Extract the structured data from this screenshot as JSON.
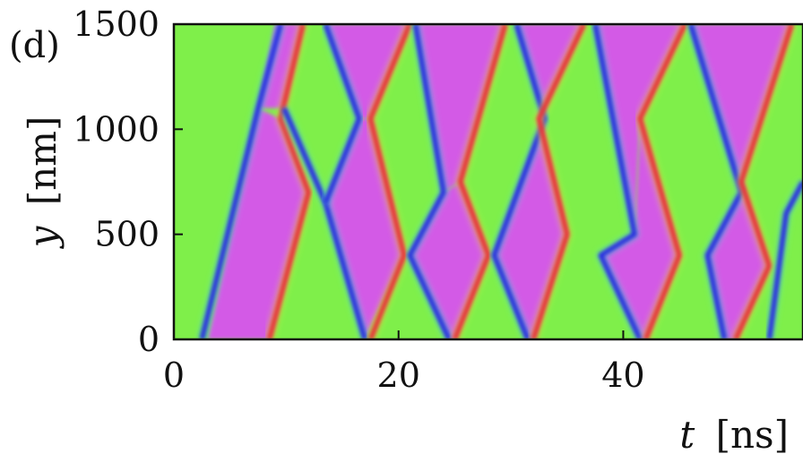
{
  "chart_data": {
    "type": "heatmap",
    "panel_label": "(d)",
    "xlabel_var": "t",
    "xlabel_unit": "[ns]",
    "ylabel_var": "y",
    "ylabel_unit": "[nm]",
    "xlim": [
      0,
      56
    ],
    "ylim": [
      0,
      1500
    ],
    "x_ticks": [
      0,
      20,
      40
    ],
    "x_tick_labels": [
      "0",
      "20",
      "40"
    ],
    "y_ticks": [
      0,
      500,
      1000,
      1500
    ],
    "y_tick_labels": [
      "0",
      "500",
      "1000",
      "1500"
    ],
    "colormap": "hsv",
    "colors": {
      "green": "#7fef4a",
      "magenta": "#d35ae6",
      "blue": "#2a2fe0",
      "red": "#e8323a",
      "yellow": "#e6f04a",
      "cyan": "#58e6d6"
    },
    "domain_walls": [
      {
        "name": "blue-wall",
        "polyline": [
          [
            2.5,
            0
          ],
          [
            7.5,
            1100
          ],
          [
            9.5,
            1500
          ]
        ]
      },
      {
        "name": "red-wall",
        "polyline": [
          [
            8.5,
            0
          ],
          [
            12,
            700
          ],
          [
            9.5,
            1050
          ],
          [
            11.5,
            1500
          ]
        ]
      },
      {
        "name": "blue-wall",
        "polyline": [
          [
            9.8,
            1100
          ],
          [
            13.5,
            650
          ],
          [
            17.0,
            0
          ]
        ]
      },
      {
        "name": "blue-wall",
        "polyline": [
          [
            13.5,
            1500
          ],
          [
            16.5,
            1050
          ],
          [
            13.5,
            650
          ]
        ]
      },
      {
        "name": "red-wall",
        "polyline": [
          [
            17.5,
            0
          ],
          [
            20.5,
            400
          ],
          [
            17.5,
            1050
          ],
          [
            21,
            1500
          ]
        ]
      },
      {
        "name": "blue-wall",
        "polyline": [
          [
            21.5,
            1500
          ],
          [
            24,
            700
          ],
          [
            21,
            400
          ],
          [
            24.5,
            0
          ]
        ]
      },
      {
        "name": "red-wall",
        "polyline": [
          [
            25,
            0
          ],
          [
            28,
            400
          ],
          [
            25.5,
            750
          ],
          [
            29.5,
            1500
          ]
        ]
      },
      {
        "name": "blue-wall",
        "polyline": [
          [
            30.5,
            1500
          ],
          [
            33,
            1050
          ],
          [
            28.5,
            400
          ],
          [
            31.5,
            0
          ]
        ]
      },
      {
        "name": "red-wall",
        "polyline": [
          [
            32,
            0
          ],
          [
            35,
            500
          ],
          [
            32.5,
            1050
          ],
          [
            36.5,
            1500
          ]
        ]
      },
      {
        "name": "blue-wall",
        "polyline": [
          [
            37.5,
            1500
          ],
          [
            41,
            500
          ],
          [
            38,
            400
          ],
          [
            41.5,
            0
          ]
        ]
      },
      {
        "name": "red-wall",
        "polyline": [
          [
            42,
            0
          ],
          [
            45,
            400
          ],
          [
            41.5,
            1050
          ],
          [
            45.5,
            1500
          ]
        ]
      },
      {
        "name": "blue-wall",
        "polyline": [
          [
            46,
            1500
          ],
          [
            50.5,
            700
          ],
          [
            47.5,
            400
          ],
          [
            49,
            0
          ]
        ]
      },
      {
        "name": "red-wall",
        "polyline": [
          [
            50,
            0
          ],
          [
            53,
            350
          ],
          [
            50.5,
            750
          ],
          [
            55,
            1500
          ]
        ]
      },
      {
        "name": "blue-wall",
        "polyline": [
          [
            53,
            0
          ],
          [
            54.5,
            600
          ],
          [
            56,
            750
          ]
        ]
      }
    ],
    "magenta_regions": [
      [
        [
          3,
          0
        ],
        [
          8.5,
          0
        ],
        [
          12,
          700
        ],
        [
          9.5,
          1050
        ],
        [
          7.5,
          1100
        ]
      ],
      [
        [
          9,
          1500
        ],
        [
          11.5,
          1500
        ],
        [
          9.8,
          1100
        ],
        [
          7.5,
          1100
        ]
      ],
      [
        [
          13.5,
          650
        ],
        [
          16.5,
          1050
        ],
        [
          17.5,
          1050
        ],
        [
          20.5,
          400
        ],
        [
          17,
          0
        ]
      ],
      [
        [
          13.5,
          1500
        ],
        [
          21,
          1500
        ],
        [
          17.5,
          1050
        ],
        [
          16.5,
          1050
        ]
      ],
      [
        [
          21,
          400
        ],
        [
          24,
          700
        ],
        [
          25.5,
          750
        ],
        [
          28,
          400
        ],
        [
          25,
          0
        ],
        [
          24.5,
          0
        ]
      ],
      [
        [
          21.5,
          1500
        ],
        [
          29.5,
          1500
        ],
        [
          25.5,
          750
        ],
        [
          24,
          700
        ]
      ],
      [
        [
          28.5,
          400
        ],
        [
          33,
          1050
        ],
        [
          32.5,
          1050
        ],
        [
          35,
          500
        ],
        [
          32,
          0
        ],
        [
          31.5,
          0
        ]
      ],
      [
        [
          30.5,
          1500
        ],
        [
          36.5,
          1500
        ],
        [
          32.5,
          1050
        ],
        [
          33,
          1050
        ]
      ],
      [
        [
          38,
          400
        ],
        [
          41,
          500
        ],
        [
          41.5,
          1050
        ],
        [
          45,
          400
        ],
        [
          42,
          0
        ],
        [
          41.5,
          0
        ]
      ],
      [
        [
          37.5,
          1500
        ],
        [
          45.5,
          1500
        ],
        [
          41.5,
          1050
        ],
        [
          41,
          500
        ]
      ],
      [
        [
          47.5,
          400
        ],
        [
          50.5,
          700
        ],
        [
          50.5,
          750
        ],
        [
          53,
          350
        ],
        [
          50,
          0
        ],
        [
          49,
          0
        ]
      ],
      [
        [
          46,
          1500
        ],
        [
          55,
          1500
        ],
        [
          50.5,
          750
        ],
        [
          50.5,
          700
        ]
      ]
    ]
  }
}
